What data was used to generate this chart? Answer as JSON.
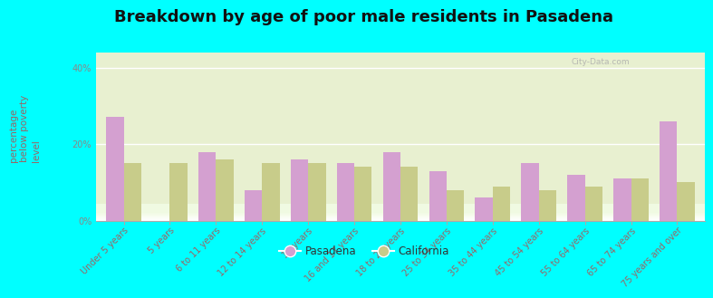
{
  "title": "Breakdown by age of poor male residents in Pasadena",
  "ylabel": "percentage\nbelow poverty\nlevel",
  "background_color": "#00ffff",
  "categories": [
    "Under 5 years",
    "5 years",
    "6 to 11 years",
    "12 to 14 years",
    "15 years",
    "16 and 17 years",
    "18 to 24 years",
    "25 to 34 years",
    "35 to 44 years",
    "45 to 54 years",
    "55 to 64 years",
    "65 to 74 years",
    "75 years and over"
  ],
  "pasadena_values": [
    27,
    0,
    18,
    8,
    16,
    15,
    18,
    13,
    6,
    15,
    12,
    11,
    26
  ],
  "california_values": [
    15,
    15,
    16,
    15,
    15,
    14,
    14,
    8,
    9,
    8,
    9,
    11,
    10
  ],
  "pasadena_color": "#d4a0d0",
  "california_color": "#c8cc8a",
  "ylim": [
    0,
    44
  ],
  "yticks": [
    0,
    20,
    40
  ],
  "ytick_labels": [
    "0%",
    "20%",
    "40%"
  ],
  "legend_pasadena": "Pasadena",
  "legend_california": "California",
  "bar_width": 0.38,
  "title_fontsize": 13,
  "axis_label_fontsize": 7.5,
  "tick_fontsize": 7,
  "xtick_color": "#996666",
  "ytick_color": "#888888",
  "ylabel_color": "#996666",
  "watermark": "City-Data.com"
}
